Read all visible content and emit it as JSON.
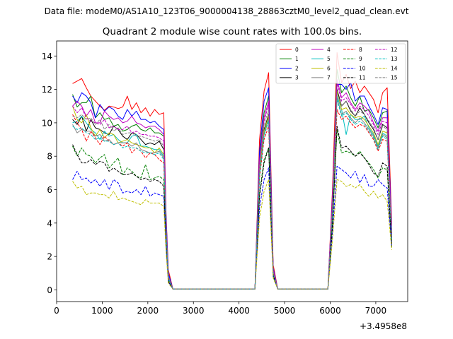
{
  "suptitle": "Data file: modeM0/AS1A10_123T06_9000004138_28863cztM0_level2_quad_clean.evt",
  "chart_data": {
    "type": "line",
    "title": "Quadrant 2 module wise count rates with 100.0s bins.",
    "xlabel": "",
    "ylabel": "",
    "offset_label": "+3.4958e8",
    "xlim": [
      0,
      7700
    ],
    "ylim": [
      -0.7,
      14.9
    ],
    "xticks": [
      0,
      1000,
      2000,
      3000,
      4000,
      5000,
      6000,
      7000
    ],
    "yticks": [
      0,
      2,
      4,
      6,
      8,
      10,
      12,
      14
    ],
    "legend_position": "top-right",
    "x": [
      350,
      450,
      550,
      650,
      750,
      850,
      950,
      1050,
      1150,
      1250,
      1350,
      1450,
      1550,
      1650,
      1750,
      1850,
      1950,
      2050,
      2150,
      2250,
      2350,
      2400,
      2450,
      2550,
      4350,
      4450,
      4550,
      4650,
      4750,
      4850,
      5950,
      6050,
      6150,
      6250,
      6350,
      6450,
      6550,
      6650,
      6750,
      6850,
      6950,
      7050,
      7150,
      7250,
      7350
    ],
    "series": [
      {
        "name": "0",
        "color": "#ff0000",
        "dash": "solid",
        "values": [
          12.35,
          12.5,
          12.65,
          12.1,
          11.6,
          11.3,
          11.0,
          10.75,
          11.0,
          10.95,
          10.85,
          10.95,
          11.6,
          10.8,
          11.2,
          10.6,
          10.9,
          10.4,
          10.8,
          10.5,
          10.6,
          4.6,
          1.2,
          0.05,
          0.05,
          9.0,
          11.9,
          13.0,
          1.5,
          0.05,
          0.05,
          6.0,
          14.2,
          12.4,
          12.9,
          12.05,
          12.5,
          11.8,
          12.2,
          11.8,
          11.4,
          10.6,
          11.8,
          12.1,
          3.9
        ]
      },
      {
        "name": "1",
        "color": "#008000",
        "dash": "solid",
        "values": [
          11.7,
          10.95,
          11.2,
          11.2,
          11.6,
          10.3,
          10.6,
          10.2,
          10.3,
          9.8,
          9.9,
          9.5,
          9.6,
          9.8,
          9.9,
          9.6,
          9.5,
          9.7,
          9.4,
          9.4,
          9.2,
          4.2,
          0.8,
          0.05,
          0.05,
          8.0,
          10.6,
          11.6,
          1.2,
          0.05,
          0.05,
          5.2,
          13.2,
          11.8,
          12.2,
          11.5,
          11.0,
          11.6,
          10.7,
          10.8,
          10.3,
          9.7,
          10.6,
          10.7,
          3.3
        ]
      },
      {
        "name": "2",
        "color": "#0000ff",
        "dash": "solid",
        "values": [
          11.6,
          11.2,
          11.8,
          11.6,
          11.2,
          10.3,
          11.1,
          10.7,
          10.95,
          10.8,
          10.4,
          10.2,
          10.8,
          10.4,
          10.7,
          10.2,
          10.2,
          10.0,
          10.1,
          9.8,
          9.6,
          4.5,
          1.0,
          0.05,
          0.05,
          8.3,
          11.3,
          12.1,
          1.3,
          0.05,
          0.05,
          5.6,
          12.3,
          12.3,
          12.0,
          12.4,
          11.3,
          11.6,
          11.6,
          11.0,
          10.5,
          9.9,
          10.9,
          10.8,
          3.6
        ]
      },
      {
        "name": "3",
        "color": "#000000",
        "dash": "solid",
        "values": [
          10.2,
          9.9,
          10.4,
          9.5,
          10.2,
          9.7,
          9.6,
          9.4,
          9.3,
          9.8,
          9.6,
          9.2,
          9.0,
          9.4,
          9.3,
          9.0,
          8.7,
          8.8,
          8.7,
          8.9,
          8.4,
          3.9,
          0.7,
          0.05,
          0.05,
          7.2,
          9.6,
          10.5,
          1.1,
          0.05,
          0.05,
          5.0,
          12.0,
          11.0,
          11.3,
          10.7,
          10.4,
          10.9,
          10.5,
          10.0,
          9.6,
          9.0,
          9.9,
          9.7,
          3.0
        ]
      },
      {
        "name": "4",
        "color": "#bf00bf",
        "dash": "solid",
        "values": [
          11.0,
          11.3,
          11.0,
          10.4,
          10.8,
          10.0,
          10.0,
          10.7,
          10.4,
          10.2,
          10.3,
          10.0,
          10.1,
          10.4,
          10.0,
          9.9,
          9.7,
          9.8,
          9.8,
          9.6,
          9.3,
          4.2,
          0.8,
          0.05,
          0.05,
          7.8,
          10.3,
          11.3,
          1.2,
          0.05,
          0.05,
          5.4,
          12.6,
          11.5,
          11.8,
          11.2,
          10.8,
          11.2,
          11.0,
          10.7,
          10.0,
          9.5,
          10.3,
          10.3,
          3.3
        ]
      },
      {
        "name": "5",
        "color": "#00bfbf",
        "dash": "solid",
        "values": [
          10.0,
          10.1,
          10.4,
          10.0,
          9.6,
          9.4,
          9.0,
          9.5,
          9.2,
          9.3,
          9.0,
          8.8,
          8.8,
          9.2,
          9.3,
          8.6,
          8.6,
          8.5,
          8.4,
          8.4,
          8.0,
          3.7,
          0.7,
          0.05,
          0.05,
          7.0,
          9.4,
          10.3,
          1.0,
          0.05,
          0.05,
          4.8,
          11.6,
          10.8,
          9.3,
          10.5,
          10.2,
          10.2,
          10.4,
          9.7,
          9.3,
          8.6,
          9.4,
          9.2,
          2.9
        ]
      },
      {
        "name": "6",
        "color": "#bfbf00",
        "dash": "solid",
        "values": [
          11.0,
          10.2,
          10.0,
          10.5,
          9.7,
          9.2,
          9.6,
          9.1,
          9.4,
          9.3,
          8.8,
          8.9,
          9.0,
          8.8,
          8.7,
          8.6,
          8.5,
          8.5,
          8.2,
          8.5,
          8.1,
          3.8,
          0.7,
          0.05,
          0.05,
          7.1,
          9.5,
          10.4,
          1.0,
          0.05,
          0.05,
          4.9,
          11.9,
          10.8,
          10.9,
          10.5,
          10.3,
          10.4,
          10.2,
          9.8,
          9.4,
          8.7,
          9.5,
          9.4,
          3.0
        ]
      },
      {
        "name": "7",
        "color": "#808080",
        "dash": "solid",
        "values": [
          9.9,
          9.4,
          9.6,
          9.5,
          9.5,
          9.2,
          9.3,
          8.9,
          9.0,
          8.7,
          8.8,
          8.8,
          8.8,
          8.6,
          8.8,
          8.4,
          8.3,
          8.2,
          8.2,
          8.3,
          7.9,
          3.6,
          0.7,
          0.05,
          0.05,
          6.9,
          9.3,
          10.2,
          1.0,
          0.05,
          0.05,
          4.8,
          11.5,
          10.5,
          10.7,
          10.3,
          10.0,
          10.3,
          10.0,
          9.6,
          9.2,
          8.5,
          9.3,
          9.1,
          2.9
        ]
      },
      {
        "name": "8",
        "color": "#ff0000",
        "dash": "dashed",
        "values": [
          10.5,
          10.0,
          9.6,
          8.9,
          9.5,
          9.1,
          8.7,
          9.2,
          8.9,
          8.7,
          8.8,
          8.6,
          8.8,
          8.2,
          8.5,
          8.3,
          7.9,
          8.2,
          8.1,
          7.8,
          7.6,
          3.5,
          0.7,
          0.05,
          0.05,
          6.7,
          9.0,
          9.8,
          1.0,
          0.05,
          0.05,
          4.6,
          10.8,
          10.2,
          10.4,
          10.0,
          9.7,
          9.9,
          9.8,
          9.4,
          9.0,
          8.3,
          9.0,
          8.9,
          2.8
        ]
      },
      {
        "name": "9",
        "color": "#008000",
        "dash": "dashed",
        "values": [
          8.6,
          8.0,
          8.5,
          8.1,
          8.0,
          7.6,
          7.9,
          8.1,
          7.3,
          7.6,
          7.9,
          6.9,
          7.3,
          7.1,
          6.8,
          6.7,
          7.5,
          6.6,
          6.7,
          6.8,
          6.6,
          3.0,
          0.6,
          0.05,
          0.05,
          5.8,
          7.8,
          8.5,
          0.9,
          0.05,
          0.05,
          4.0,
          9.6,
          8.2,
          8.3,
          8.2,
          8.0,
          8.3,
          7.9,
          7.6,
          7.2,
          6.7,
          7.3,
          7.2,
          2.5
        ]
      },
      {
        "name": "10",
        "color": "#0000ff",
        "dash": "dashed",
        "values": [
          6.6,
          7.1,
          6.6,
          6.7,
          6.4,
          6.6,
          6.2,
          6.6,
          6.0,
          6.6,
          6.4,
          5.8,
          5.9,
          5.8,
          6.0,
          5.7,
          6.2,
          5.6,
          5.8,
          5.7,
          5.6,
          2.6,
          0.5,
          0.05,
          0.05,
          4.9,
          6.6,
          7.3,
          0.8,
          0.05,
          0.05,
          3.4,
          7.4,
          7.2,
          7.0,
          6.7,
          7.1,
          6.4,
          6.9,
          6.2,
          6.2,
          6.6,
          6.3,
          6.1,
          2.6
        ]
      },
      {
        "name": "11",
        "color": "#000000",
        "dash": "dashed",
        "values": [
          8.7,
          8.1,
          7.6,
          7.6,
          7.8,
          7.5,
          7.7,
          7.6,
          7.1,
          7.3,
          7.1,
          6.9,
          6.9,
          7.0,
          6.8,
          6.6,
          6.7,
          6.5,
          6.6,
          6.5,
          6.2,
          2.9,
          0.5,
          0.05,
          0.05,
          5.6,
          7.6,
          8.5,
          0.9,
          0.05,
          0.05,
          3.9,
          9.8,
          8.5,
          8.6,
          8.3,
          8.0,
          8.2,
          7.9,
          7.5,
          7.0,
          6.8,
          7.6,
          7.4,
          2.6
        ]
      },
      {
        "name": "12",
        "color": "#bf00bf",
        "dash": "dashed",
        "values": [
          11.0,
          10.6,
          10.9,
          10.3,
          10.1,
          10.0,
          9.9,
          10.2,
          9.7,
          9.8,
          9.6,
          9.6,
          9.8,
          9.4,
          9.5,
          9.3,
          9.3,
          9.2,
          9.2,
          9.1,
          8.9,
          4.1,
          0.8,
          0.05,
          0.05,
          7.6,
          10.1,
          11.1,
          1.1,
          0.05,
          0.05,
          5.3,
          12.4,
          11.3,
          11.5,
          11.1,
          10.7,
          11.0,
          10.8,
          10.4,
          9.9,
          9.3,
          10.1,
          10.0,
          3.2
        ]
      },
      {
        "name": "13",
        "color": "#00bfbf",
        "dash": "dashed",
        "values": [
          9.8,
          9.6,
          9.7,
          9.4,
          9.3,
          9.0,
          9.1,
          8.9,
          8.9,
          8.7,
          8.8,
          8.5,
          8.6,
          8.5,
          8.5,
          8.3,
          8.2,
          8.2,
          8.1,
          8.2,
          7.8,
          3.6,
          0.7,
          0.05,
          0.05,
          6.8,
          9.2,
          10.1,
          1.0,
          0.05,
          0.05,
          4.7,
          11.4,
          10.4,
          10.6,
          10.2,
          9.9,
          10.1,
          9.9,
          9.5,
          9.1,
          8.4,
          9.2,
          9.0,
          2.9
        ]
      },
      {
        "name": "14",
        "color": "#bfbf00",
        "dash": "dashed",
        "values": [
          6.5,
          6.1,
          6.2,
          5.7,
          5.8,
          5.8,
          5.7,
          5.7,
          5.5,
          5.9,
          5.4,
          5.5,
          5.4,
          5.3,
          5.2,
          5.1,
          5.4,
          5.2,
          5.2,
          5.2,
          5.0,
          2.3,
          0.4,
          0.05,
          0.05,
          4.3,
          5.9,
          6.6,
          0.7,
          0.05,
          0.05,
          3.0,
          6.6,
          6.5,
          6.2,
          6.3,
          6.1,
          6.3,
          5.9,
          5.6,
          5.9,
          5.5,
          5.7,
          5.3,
          2.4
        ]
      },
      {
        "name": "15",
        "color": "#808080",
        "dash": "dashed",
        "values": [
          10.4,
          10.3,
          10.5,
          10.2,
          10.3,
          9.9,
          10.2,
          9.6,
          9.9,
          9.5,
          9.7,
          9.3,
          9.4,
          9.4,
          9.2,
          9.2,
          9.1,
          9.0,
          8.9,
          9.0,
          8.6,
          3.9,
          0.8,
          0.05,
          0.05,
          7.4,
          9.9,
          10.8,
          1.1,
          0.05,
          0.05,
          5.1,
          11.8,
          11.0,
          11.3,
          10.8,
          10.4,
          10.7,
          10.5,
          10.1,
          9.7,
          9.0,
          9.8,
          9.6,
          3.1
        ]
      }
    ]
  }
}
